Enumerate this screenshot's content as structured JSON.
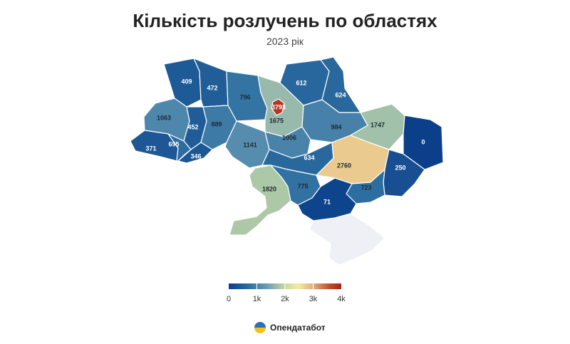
{
  "title": "Кількість розлучень по областях",
  "subtitle": "2023 рік",
  "brand": {
    "name": "Опендатабот",
    "icon": "opendatabot-logo-icon"
  },
  "legend": {
    "min": 0,
    "max": 4000,
    "ticks": [
      "0",
      "1k",
      "2k",
      "3k",
      "4k"
    ],
    "stops": [
      "#0b3f8a",
      "#2d6ea0",
      "#6fa0b8",
      "#c8d9a0",
      "#f4eba2",
      "#e0a87a",
      "#c04a28",
      "#a82315"
    ]
  },
  "chart_data": {
    "type": "choropleth",
    "title": "Кількість розлучень по областях",
    "subtitle": "2023 рік",
    "color_scale": {
      "min": 0,
      "max": 4000,
      "ticks": [
        0,
        1000,
        2000,
        3000,
        4000
      ]
    },
    "regions": [
      {
        "name": "Волинська",
        "value": 409
      },
      {
        "name": "Рівненська",
        "value": 472
      },
      {
        "name": "Житомирська",
        "value": 796
      },
      {
        "name": "Київська",
        "value": 1675
      },
      {
        "name": "м. Київ",
        "value": 3793
      },
      {
        "name": "Чернігівська",
        "value": 612
      },
      {
        "name": "Сумська",
        "value": 624
      },
      {
        "name": "Львівська",
        "value": 1063
      },
      {
        "name": "Тернопільська",
        "value": 452
      },
      {
        "name": "Хмельницька",
        "value": 889
      },
      {
        "name": "Закарпатська",
        "value": 371
      },
      {
        "name": "Івано-Франківська",
        "value": 695
      },
      {
        "name": "Чернівецька",
        "value": 346
      },
      {
        "name": "Вінницька",
        "value": 1141
      },
      {
        "name": "Черкаська",
        "value": 1006
      },
      {
        "name": "Полтавська",
        "value": 984
      },
      {
        "name": "Харківська",
        "value": 1747
      },
      {
        "name": "Луганська",
        "value": 0
      },
      {
        "name": "Кіровоградська",
        "value": 634
      },
      {
        "name": "Дніпропетровська",
        "value": 2760
      },
      {
        "name": "Донецька",
        "value": 250
      },
      {
        "name": "Одеська",
        "value": 1820
      },
      {
        "name": "Миколаївська",
        "value": 775
      },
      {
        "name": "Запорізька",
        "value": 723
      },
      {
        "name": "Херсонська",
        "value": 71
      },
      {
        "name": "АР Крим",
        "value": null
      }
    ]
  }
}
